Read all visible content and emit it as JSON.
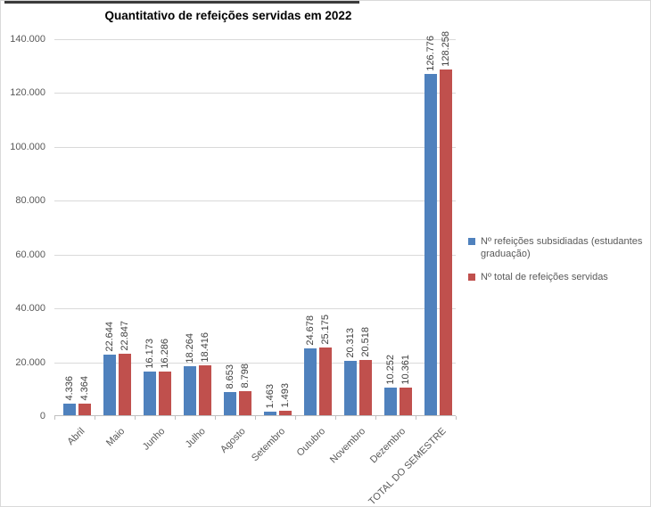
{
  "chart_data": {
    "type": "bar",
    "title": "Quantitativo de refeições servidas em 2022",
    "categories": [
      "Abril",
      "Maio",
      "Junho",
      "Julho",
      "Agosto",
      "Setembro",
      "Outubro",
      "Novembro",
      "Dezembro",
      "TOTAL DO SEMESTRE"
    ],
    "series": [
      {
        "name": "Nº refeições subsidiadas (estudantes graduação)",
        "color": "#4F81BD",
        "values": [
          4336,
          22644,
          16173,
          18264,
          8653,
          1463,
          24678,
          20313,
          10252,
          126776
        ]
      },
      {
        "name": "Nº total de refeições servidas",
        "color": "#C0504D",
        "values": [
          4364,
          22847,
          16286,
          18416,
          8798,
          1493,
          25175,
          20518,
          10361,
          128258
        ]
      }
    ],
    "xlabel": "",
    "ylabel": "",
    "ylim": [
      0,
      140000
    ],
    "ytick_step": 20000,
    "ytick_labels": [
      "0",
      "20.000",
      "40.000",
      "60.000",
      "80.000",
      "100.000",
      "120.000",
      "140.000"
    ],
    "grid": true,
    "legend_position": "right",
    "data_labels": "rotated-vertical",
    "number_format": "thousands-dot"
  },
  "style": {
    "series1_color": "#4F81BD",
    "series2_color": "#C0504D",
    "gridline_color": "#D9D9D9",
    "axis_line_color": "#BFBFBF",
    "tick_text_color": "#595959",
    "data_label_color": "#404040",
    "title_color": "#000000",
    "background_color": "#FFFFFF"
  }
}
